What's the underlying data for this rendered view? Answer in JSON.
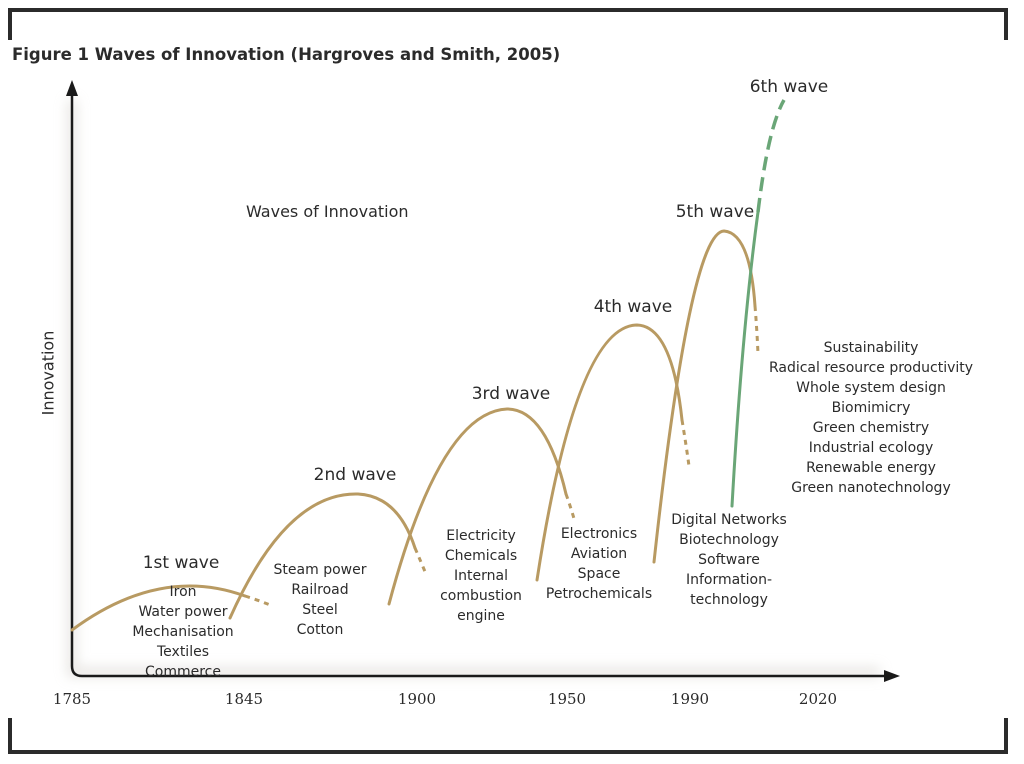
{
  "title": "Figure 1 Waves of Innovation (Hargroves and Smith, 2005)",
  "subtitle": "Waves of Innovation",
  "y_axis_label": "Innovation",
  "x_axis_ticks": [
    "1785",
    "1845",
    "1900",
    "1950",
    "1990",
    "2020"
  ],
  "colors": {
    "wave": "#b89a62",
    "sixth_wave": "#6aa677",
    "axis": "#1a1a1a"
  },
  "waves": [
    {
      "label": "1st wave",
      "technologies": [
        "Iron",
        "Water power",
        "Mechanisation",
        "Textiles",
        "Commerce"
      ]
    },
    {
      "label": "2nd wave",
      "technologies": [
        "Steam power",
        "Railroad",
        "Steel",
        "Cotton"
      ]
    },
    {
      "label": "3rd wave",
      "technologies": [
        "Electricity",
        "Chemicals",
        "Internal",
        "combustion",
        "engine"
      ]
    },
    {
      "label": "4th wave",
      "technologies": [
        "Electronics",
        "Aviation",
        "Space",
        "Petrochemicals"
      ]
    },
    {
      "label": "5th wave",
      "technologies": [
        "Digital Networks",
        "Biotechnology",
        "Software",
        "Information-",
        "technology"
      ]
    },
    {
      "label": "6th wave",
      "technologies": [
        "Sustainability",
        "Radical resource productivity",
        "Whole system design",
        "Biomimicry",
        "Green chemistry",
        "Industrial ecology",
        "Renewable energy",
        "Green nanotechnology"
      ]
    }
  ]
}
